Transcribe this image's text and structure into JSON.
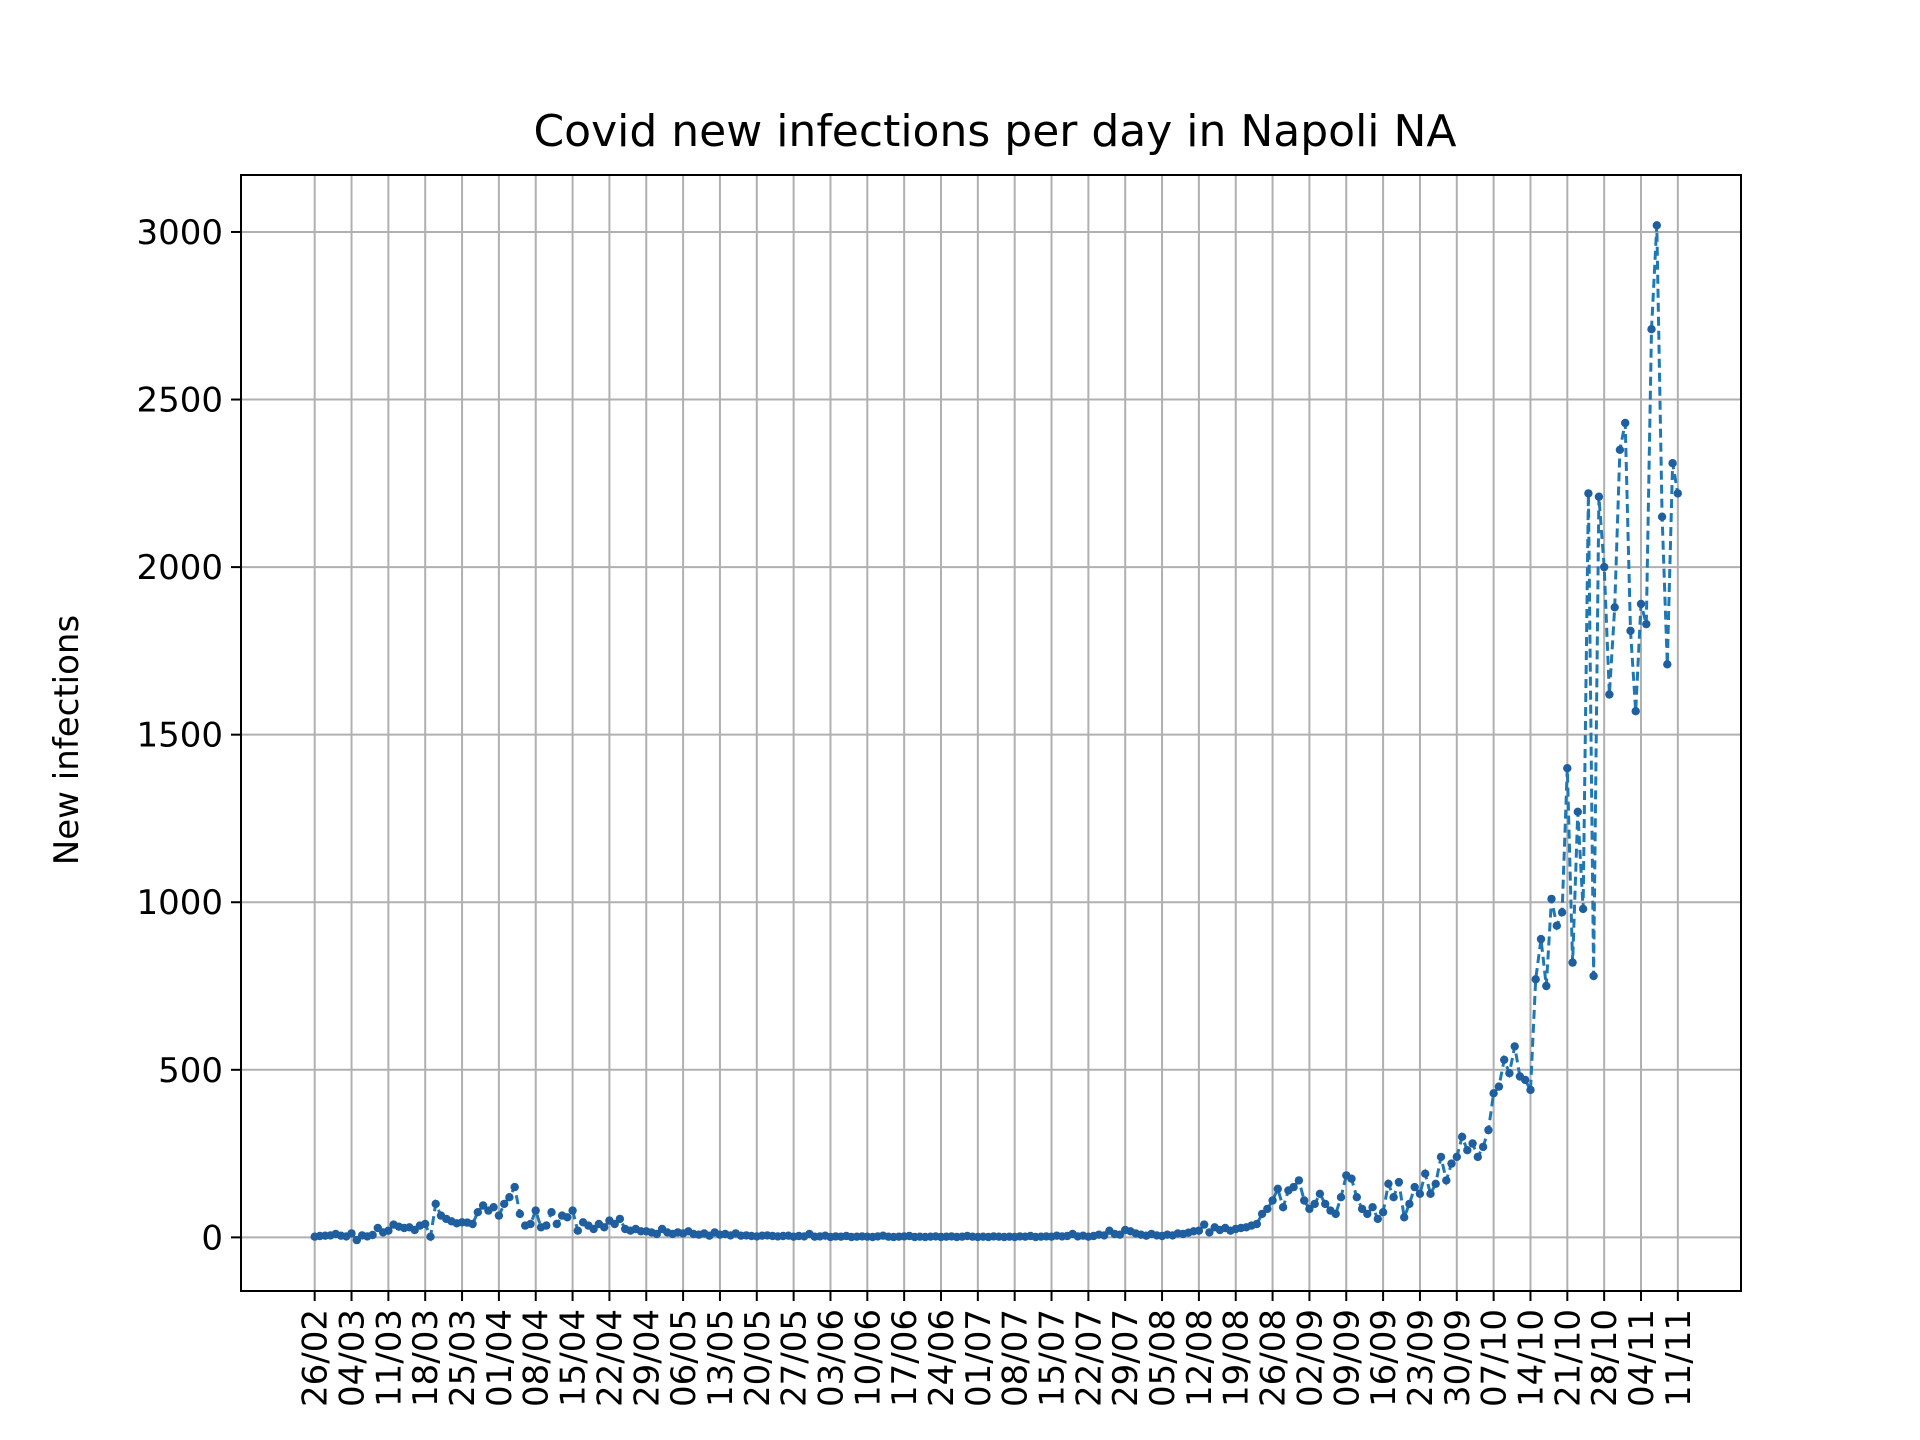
{
  "chart_data": {
    "type": "line",
    "title": "Covid new infections per day in Napoli NA",
    "xlabel": "",
    "ylabel": "New infections",
    "x_tick_labels": [
      "26/02",
      "04/03",
      "11/03",
      "18/03",
      "25/03",
      "01/04",
      "08/04",
      "15/04",
      "22/04",
      "29/04",
      "06/05",
      "13/05",
      "20/05",
      "27/05",
      "03/06",
      "10/06",
      "17/06",
      "24/06",
      "01/07",
      "08/07",
      "15/07",
      "22/07",
      "29/07",
      "05/08",
      "12/08",
      "19/08",
      "26/08",
      "02/09",
      "09/09",
      "16/09",
      "23/09",
      "30/09",
      "07/10",
      "14/10",
      "21/10",
      "28/10",
      "04/11",
      "11/11"
    ],
    "y_ticks": [
      0,
      500,
      1000,
      1500,
      2000,
      2500,
      3000
    ],
    "ylim": [
      -160,
      3170
    ],
    "xlim": [
      "2020-02-12",
      "2020-11-23"
    ],
    "grid": true,
    "line_color": "#1f77b4",
    "marker_color": "#1f5fa0",
    "line_style": "dashed",
    "series": [
      {
        "values": [
          [
            "2020-02-26",
            2
          ],
          [
            "2020-02-27",
            4
          ],
          [
            "2020-02-28",
            5
          ],
          [
            "2020-02-29",
            6
          ],
          [
            "2020-03-01",
            10
          ],
          [
            "2020-03-02",
            5
          ],
          [
            "2020-03-03",
            3
          ],
          [
            "2020-03-04",
            12
          ],
          [
            "2020-03-05",
            -8
          ],
          [
            "2020-03-06",
            6
          ],
          [
            "2020-03-07",
            3
          ],
          [
            "2020-03-08",
            7
          ],
          [
            "2020-03-09",
            28
          ],
          [
            "2020-03-10",
            15
          ],
          [
            "2020-03-11",
            20
          ],
          [
            "2020-03-12",
            38
          ],
          [
            "2020-03-13",
            32
          ],
          [
            "2020-03-14",
            28
          ],
          [
            "2020-03-15",
            30
          ],
          [
            "2020-03-16",
            22
          ],
          [
            "2020-03-17",
            35
          ],
          [
            "2020-03-18",
            40
          ],
          [
            "2020-03-19",
            2
          ],
          [
            "2020-03-20",
            100
          ],
          [
            "2020-03-21",
            65
          ],
          [
            "2020-03-22",
            55
          ],
          [
            "2020-03-23",
            48
          ],
          [
            "2020-03-24",
            42
          ],
          [
            "2020-03-25",
            45
          ],
          [
            "2020-03-26",
            44
          ],
          [
            "2020-03-27",
            40
          ],
          [
            "2020-03-28",
            75
          ],
          [
            "2020-03-29",
            95
          ],
          [
            "2020-03-30",
            80
          ],
          [
            "2020-03-31",
            90
          ],
          [
            "2020-04-01",
            65
          ],
          [
            "2020-04-02",
            100
          ],
          [
            "2020-04-03",
            120
          ],
          [
            "2020-04-04",
            150
          ],
          [
            "2020-04-05",
            70
          ],
          [
            "2020-04-06",
            35
          ],
          [
            "2020-04-07",
            40
          ],
          [
            "2020-04-08",
            80
          ],
          [
            "2020-04-09",
            30
          ],
          [
            "2020-04-10",
            35
          ],
          [
            "2020-04-11",
            75
          ],
          [
            "2020-04-12",
            40
          ],
          [
            "2020-04-13",
            65
          ],
          [
            "2020-04-14",
            60
          ],
          [
            "2020-04-15",
            80
          ],
          [
            "2020-04-16",
            20
          ],
          [
            "2020-04-17",
            45
          ],
          [
            "2020-04-18",
            35
          ],
          [
            "2020-04-19",
            25
          ],
          [
            "2020-04-20",
            40
          ],
          [
            "2020-04-21",
            30
          ],
          [
            "2020-04-22",
            50
          ],
          [
            "2020-04-23",
            40
          ],
          [
            "2020-04-24",
            55
          ],
          [
            "2020-04-25",
            25
          ],
          [
            "2020-04-26",
            20
          ],
          [
            "2020-04-27",
            25
          ],
          [
            "2020-04-28",
            18
          ],
          [
            "2020-04-29",
            18
          ],
          [
            "2020-04-30",
            15
          ],
          [
            "2020-05-01",
            10
          ],
          [
            "2020-05-02",
            25
          ],
          [
            "2020-05-03",
            15
          ],
          [
            "2020-05-04",
            10
          ],
          [
            "2020-05-05",
            15
          ],
          [
            "2020-05-06",
            12
          ],
          [
            "2020-05-07",
            18
          ],
          [
            "2020-05-08",
            10
          ],
          [
            "2020-05-09",
            8
          ],
          [
            "2020-05-10",
            12
          ],
          [
            "2020-05-11",
            5
          ],
          [
            "2020-05-12",
            15
          ],
          [
            "2020-05-13",
            8
          ],
          [
            "2020-05-14",
            10
          ],
          [
            "2020-05-15",
            6
          ],
          [
            "2020-05-16",
            12
          ],
          [
            "2020-05-17",
            5
          ],
          [
            "2020-05-18",
            6
          ],
          [
            "2020-05-19",
            4
          ],
          [
            "2020-05-20",
            3
          ],
          [
            "2020-05-21",
            5
          ],
          [
            "2020-05-22",
            6
          ],
          [
            "2020-05-23",
            4
          ],
          [
            "2020-05-24",
            3
          ],
          [
            "2020-05-25",
            4
          ],
          [
            "2020-05-26",
            5
          ],
          [
            "2020-05-27",
            2
          ],
          [
            "2020-05-28",
            4
          ],
          [
            "2020-05-29",
            3
          ],
          [
            "2020-05-30",
            10
          ],
          [
            "2020-05-31",
            2
          ],
          [
            "2020-06-01",
            3
          ],
          [
            "2020-06-02",
            5
          ],
          [
            "2020-06-03",
            1
          ],
          [
            "2020-06-04",
            3
          ],
          [
            "2020-06-05",
            2
          ],
          [
            "2020-06-06",
            4
          ],
          [
            "2020-06-07",
            1
          ],
          [
            "2020-06-08",
            2
          ],
          [
            "2020-06-09",
            3
          ],
          [
            "2020-06-10",
            2
          ],
          [
            "2020-06-11",
            1
          ],
          [
            "2020-06-12",
            3
          ],
          [
            "2020-06-13",
            5
          ],
          [
            "2020-06-14",
            2
          ],
          [
            "2020-06-15",
            1
          ],
          [
            "2020-06-16",
            2
          ],
          [
            "2020-06-17",
            3
          ],
          [
            "2020-06-18",
            4
          ],
          [
            "2020-06-19",
            1
          ],
          [
            "2020-06-20",
            2
          ],
          [
            "2020-06-21",
            1
          ],
          [
            "2020-06-22",
            2
          ],
          [
            "2020-06-23",
            3
          ],
          [
            "2020-06-24",
            1
          ],
          [
            "2020-06-25",
            2
          ],
          [
            "2020-06-26",
            3
          ],
          [
            "2020-06-27",
            1
          ],
          [
            "2020-06-28",
            2
          ],
          [
            "2020-06-29",
            4
          ],
          [
            "2020-06-30",
            2
          ],
          [
            "2020-07-01",
            1
          ],
          [
            "2020-07-02",
            2
          ],
          [
            "2020-07-03",
            1
          ],
          [
            "2020-07-04",
            3
          ],
          [
            "2020-07-05",
            2
          ],
          [
            "2020-07-06",
            1
          ],
          [
            "2020-07-07",
            2
          ],
          [
            "2020-07-08",
            1
          ],
          [
            "2020-07-09",
            3
          ],
          [
            "2020-07-10",
            2
          ],
          [
            "2020-07-11",
            4
          ],
          [
            "2020-07-12",
            1
          ],
          [
            "2020-07-13",
            2
          ],
          [
            "2020-07-14",
            3
          ],
          [
            "2020-07-15",
            2
          ],
          [
            "2020-07-16",
            5
          ],
          [
            "2020-07-17",
            3
          ],
          [
            "2020-07-18",
            4
          ],
          [
            "2020-07-19",
            10
          ],
          [
            "2020-07-20",
            3
          ],
          [
            "2020-07-21",
            5
          ],
          [
            "2020-07-22",
            2
          ],
          [
            "2020-07-23",
            4
          ],
          [
            "2020-07-24",
            8
          ],
          [
            "2020-07-25",
            6
          ],
          [
            "2020-07-26",
            20
          ],
          [
            "2020-07-27",
            10
          ],
          [
            "2020-07-28",
            8
          ],
          [
            "2020-07-29",
            22
          ],
          [
            "2020-07-30",
            18
          ],
          [
            "2020-07-31",
            12
          ],
          [
            "2020-08-01",
            8
          ],
          [
            "2020-08-02",
            5
          ],
          [
            "2020-08-03",
            10
          ],
          [
            "2020-08-04",
            6
          ],
          [
            "2020-08-05",
            4
          ],
          [
            "2020-08-06",
            8
          ],
          [
            "2020-08-07",
            6
          ],
          [
            "2020-08-08",
            12
          ],
          [
            "2020-08-09",
            10
          ],
          [
            "2020-08-10",
            14
          ],
          [
            "2020-08-11",
            18
          ],
          [
            "2020-08-12",
            20
          ],
          [
            "2020-08-13",
            38
          ],
          [
            "2020-08-14",
            15
          ],
          [
            "2020-08-15",
            30
          ],
          [
            "2020-08-16",
            22
          ],
          [
            "2020-08-17",
            28
          ],
          [
            "2020-08-18",
            20
          ],
          [
            "2020-08-19",
            25
          ],
          [
            "2020-08-20",
            28
          ],
          [
            "2020-08-21",
            30
          ],
          [
            "2020-08-22",
            35
          ],
          [
            "2020-08-23",
            40
          ],
          [
            "2020-08-24",
            70
          ],
          [
            "2020-08-25",
            85
          ],
          [
            "2020-08-26",
            110
          ],
          [
            "2020-08-27",
            145
          ],
          [
            "2020-08-28",
            90
          ],
          [
            "2020-08-29",
            140
          ],
          [
            "2020-08-30",
            150
          ],
          [
            "2020-08-31",
            170
          ],
          [
            "2020-09-01",
            110
          ],
          [
            "2020-09-02",
            85
          ],
          [
            "2020-09-03",
            100
          ],
          [
            "2020-09-04",
            130
          ],
          [
            "2020-09-05",
            100
          ],
          [
            "2020-09-06",
            80
          ],
          [
            "2020-09-07",
            70
          ],
          [
            "2020-09-08",
            120
          ],
          [
            "2020-09-09",
            185
          ],
          [
            "2020-09-10",
            175
          ],
          [
            "2020-09-11",
            120
          ],
          [
            "2020-09-12",
            85
          ],
          [
            "2020-09-13",
            70
          ],
          [
            "2020-09-14",
            90
          ],
          [
            "2020-09-15",
            55
          ],
          [
            "2020-09-16",
            75
          ],
          [
            "2020-09-17",
            160
          ],
          [
            "2020-09-18",
            120
          ],
          [
            "2020-09-19",
            165
          ],
          [
            "2020-09-20",
            60
          ],
          [
            "2020-09-21",
            100
          ],
          [
            "2020-09-22",
            150
          ],
          [
            "2020-09-23",
            130
          ],
          [
            "2020-09-24",
            190
          ],
          [
            "2020-09-25",
            130
          ],
          [
            "2020-09-26",
            160
          ],
          [
            "2020-09-27",
            240
          ],
          [
            "2020-09-28",
            170
          ],
          [
            "2020-09-29",
            220
          ],
          [
            "2020-09-30",
            240
          ],
          [
            "2020-10-01",
            300
          ],
          [
            "2020-10-02",
            260
          ],
          [
            "2020-10-03",
            280
          ],
          [
            "2020-10-04",
            240
          ],
          [
            "2020-10-05",
            270
          ],
          [
            "2020-10-06",
            320
          ],
          [
            "2020-10-07",
            430
          ],
          [
            "2020-10-08",
            450
          ],
          [
            "2020-10-09",
            530
          ],
          [
            "2020-10-10",
            490
          ],
          [
            "2020-10-11",
            570
          ],
          [
            "2020-10-12",
            480
          ],
          [
            "2020-10-13",
            470
          ],
          [
            "2020-10-14",
            440
          ],
          [
            "2020-10-15",
            770
          ],
          [
            "2020-10-16",
            890
          ],
          [
            "2020-10-17",
            750
          ],
          [
            "2020-10-18",
            1010
          ],
          [
            "2020-10-19",
            930
          ],
          [
            "2020-10-20",
            970
          ],
          [
            "2020-10-21",
            1400
          ],
          [
            "2020-10-22",
            820
          ],
          [
            "2020-10-23",
            1270
          ],
          [
            "2020-10-24",
            980
          ],
          [
            "2020-10-25",
            2220
          ],
          [
            "2020-10-26",
            780
          ],
          [
            "2020-10-27",
            2210
          ],
          [
            "2020-10-28",
            2000
          ],
          [
            "2020-10-29",
            1620
          ],
          [
            "2020-10-30",
            1880
          ],
          [
            "2020-10-31",
            2350
          ],
          [
            "2020-11-01",
            2430
          ],
          [
            "2020-11-02",
            1810
          ],
          [
            "2020-11-03",
            1570
          ],
          [
            "2020-11-04",
            1890
          ],
          [
            "2020-11-05",
            1830
          ],
          [
            "2020-11-06",
            2710
          ],
          [
            "2020-11-07",
            3020
          ],
          [
            "2020-11-08",
            2150
          ],
          [
            "2020-11-09",
            1710
          ],
          [
            "2020-11-10",
            2310
          ],
          [
            "2020-11-11",
            2220
          ]
        ]
      }
    ]
  }
}
